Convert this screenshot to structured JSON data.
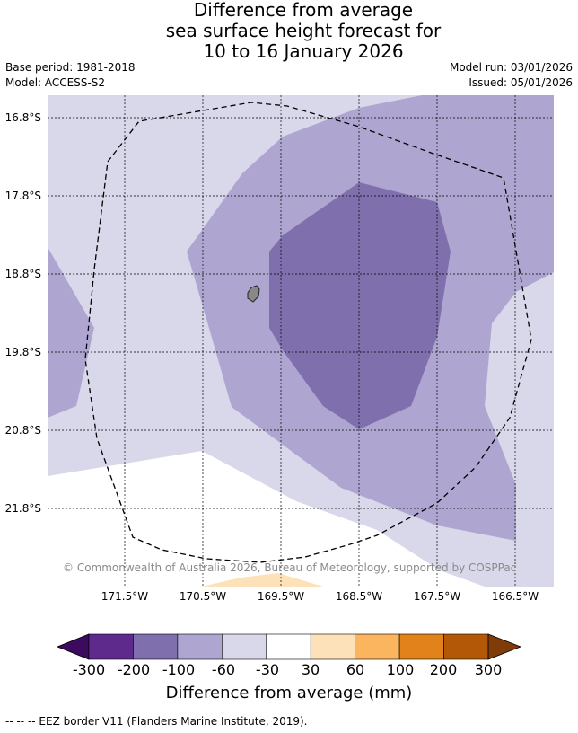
{
  "header": {
    "title_line1": "Difference from average",
    "title_line2": "sea surface height forecast for",
    "title_line3": "10 to 16 January 2026",
    "base_period": "Base period: 1981-2018",
    "model": "Model: ACCESS-S2",
    "model_run": "Model run: 03/01/2026",
    "issued": "Issued: 05/01/2026"
  },
  "map": {
    "lat_labels": [
      "16.8°S",
      "17.8°S",
      "18.8°S",
      "19.8°S",
      "20.8°S",
      "21.8°S"
    ],
    "lon_labels": [
      "171.5°W",
      "170.5°W",
      "169.5°W",
      "168.5°W",
      "167.5°W",
      "166.5°W"
    ],
    "copyright": "© Commonwealth of Australia 2026, Bureau of Meteorology, supported by COSPPac",
    "island_icon": "island-shape-icon",
    "eez_line": "dashed"
  },
  "colorbar": {
    "ticks": [
      "-300",
      "-200",
      "-100",
      "-60",
      "-30",
      "30",
      "60",
      "100",
      "200",
      "300"
    ],
    "colors": [
      "#3c0a5e",
      "#5e2a8c",
      "#7f6fad",
      "#aea6d0",
      "#d8d8ea",
      "#ffffff",
      "#fde1b8",
      "#fbb55e",
      "#e1831a",
      "#b35806",
      "#7f3b08"
    ],
    "title": "Difference from average (mm)"
  },
  "legend": {
    "eez_text": "--  --  -- EEZ border V11 (Flanders Marine Institute, 2019)."
  }
}
